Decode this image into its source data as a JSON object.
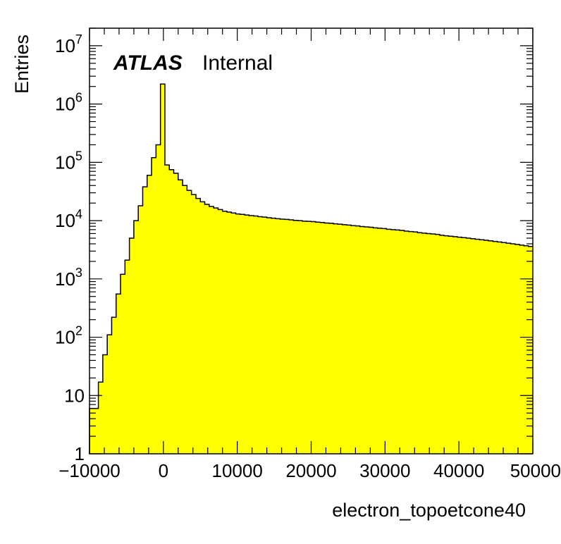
{
  "chart_data": {
    "type": "bar",
    "subtype": "histogram",
    "title": "",
    "experiment_label": "ATLAS",
    "status_label": "Internal",
    "xlabel": "electron_topoetcone40",
    "ylabel": "Entries",
    "xlim": [
      -10000,
      50000
    ],
    "ylim": [
      1,
      20000000
    ],
    "yscale": "log",
    "grid": false,
    "legend": "none",
    "fill_color": "#ffff00",
    "line_color": "#000000",
    "bin_width": 600,
    "x_ticks": [
      {
        "value": -10000,
        "label": "−10000"
      },
      {
        "value": 0,
        "label": "0"
      },
      {
        "value": 10000,
        "label": "10000"
      },
      {
        "value": 20000,
        "label": "20000"
      },
      {
        "value": 30000,
        "label": "30000"
      },
      {
        "value": 40000,
        "label": "40000"
      },
      {
        "value": 50000,
        "label": "50000"
      }
    ],
    "y_ticks": [
      {
        "value": 1,
        "base": "1",
        "exp": ""
      },
      {
        "value": 10,
        "base": "10",
        "exp": ""
      },
      {
        "value": 100,
        "base": "10",
        "exp": "2"
      },
      {
        "value": 1000,
        "base": "10",
        "exp": "3"
      },
      {
        "value": 10000,
        "base": "10",
        "exp": "4"
      },
      {
        "value": 100000,
        "base": "10",
        "exp": "5"
      },
      {
        "value": 1000000,
        "base": "10",
        "exp": "6"
      },
      {
        "value": 10000000,
        "base": "10",
        "exp": "7"
      }
    ],
    "bins_low_edge": [
      -10000,
      -9400,
      -8800,
      -8200,
      -7600,
      -7000,
      -6400,
      -5800,
      -5200,
      -4600,
      -4000,
      -3400,
      -2800,
      -2200,
      -1600,
      -1000,
      -400,
      200,
      800,
      1400,
      2000,
      2600,
      3200,
      3800,
      4400,
      5000,
      5600,
      6200,
      6800,
      7400,
      8000,
      8600,
      9200,
      9800,
      10400,
      11000,
      11600,
      12200,
      12800,
      13400,
      14000,
      14600,
      15200,
      15800,
      16400,
      17000,
      17600,
      18200,
      18800,
      19400,
      20000,
      20600,
      21200,
      21800,
      22400,
      23000,
      23600,
      24200,
      24800,
      25400,
      26000,
      26600,
      27200,
      27800,
      28400,
      29000,
      29600,
      30200,
      30800,
      31400,
      32000,
      32600,
      33200,
      33800,
      34400,
      35000,
      35600,
      36200,
      36800,
      37400,
      38000,
      38600,
      39200,
      39800,
      40400,
      41000,
      41600,
      42200,
      42800,
      43400,
      44000,
      44600,
      45200,
      45800,
      46400,
      47000,
      47600,
      48200,
      48800,
      49400
    ],
    "values": [
      6,
      6,
      17,
      50,
      110,
      220,
      550,
      1200,
      2100,
      5000,
      10000,
      18000,
      38000,
      60000,
      120000,
      200000,
      2200000,
      90000,
      75000,
      65000,
      50000,
      40000,
      33000,
      28000,
      24000,
      21000,
      19000,
      17500,
      16500,
      15500,
      14500,
      14000,
      13500,
      13000,
      12800,
      12500,
      12200,
      12000,
      11700,
      11500,
      11200,
      11000,
      10800,
      10600,
      10500,
      10300,
      10100,
      10000,
      9800,
      9700,
      9600,
      9400,
      9300,
      9100,
      9000,
      8800,
      8700,
      8500,
      8400,
      8200,
      8100,
      7900,
      7800,
      7700,
      7500,
      7400,
      7300,
      7100,
      7000,
      6900,
      6800,
      6600,
      6500,
      6400,
      6200,
      6100,
      6000,
      5900,
      5800,
      5600,
      5500,
      5400,
      5300,
      5200,
      5100,
      5000,
      4900,
      4800,
      4700,
      4600,
      4500,
      4400,
      4300,
      4200,
      4100,
      4000,
      3900,
      3800,
      3700,
      3600
    ]
  }
}
